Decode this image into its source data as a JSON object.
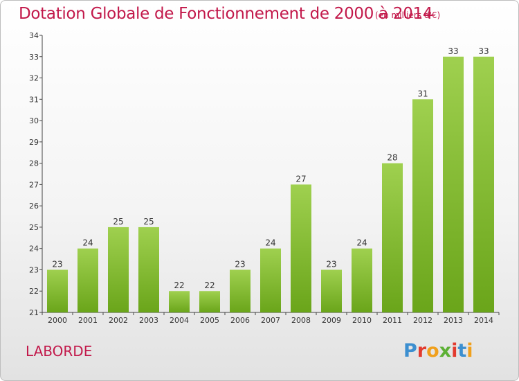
{
  "header": {
    "title": "Dotation Globale de Fonctionnement de 2000 à 2014",
    "unit": "(en milliers d'€)"
  },
  "footer": {
    "commune": "LABORDE",
    "logo": "Proxiti"
  },
  "colors": {
    "title": "#c2184a",
    "bar_light": "#9fd04f",
    "bar_dark": "#6aa51a",
    "logo_letters": [
      "#3c8fd0",
      "#e23b2f",
      "#f0a01c",
      "#5cb034",
      "#e23b2f",
      "#3c8fd0",
      "#f0a01c"
    ]
  },
  "chart_data": {
    "type": "bar",
    "title": "Dotation Globale de Fonctionnement de 2000 à 2014",
    "subtitle": "(en milliers d'€)",
    "categories": [
      "2000",
      "2001",
      "2002",
      "2003",
      "2004",
      "2005",
      "2006",
      "2007",
      "2008",
      "2009",
      "2010",
      "2011",
      "2012",
      "2013",
      "2014"
    ],
    "values": [
      23,
      24,
      25,
      25,
      22,
      22,
      23,
      24,
      27,
      23,
      24,
      28,
      31,
      33,
      33
    ],
    "ylim": [
      21,
      34
    ],
    "yticks": [
      21,
      22,
      23,
      24,
      25,
      26,
      27,
      28,
      29,
      30,
      31,
      32,
      33,
      34
    ],
    "grid": false,
    "legend": "none"
  }
}
